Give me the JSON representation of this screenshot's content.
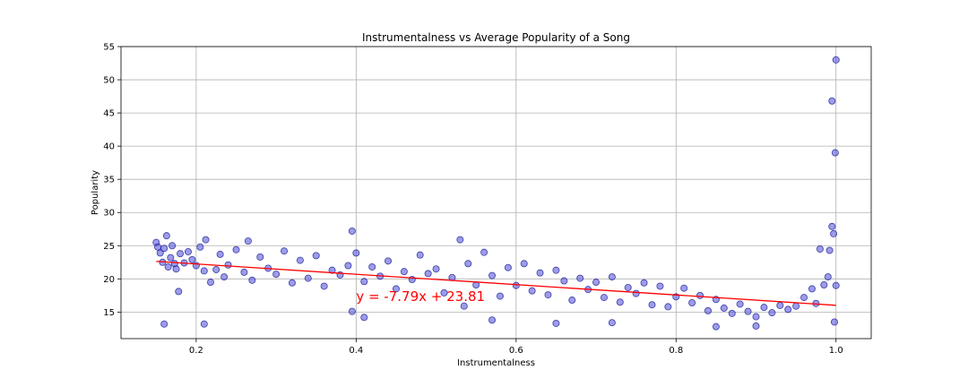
{
  "chart_data": {
    "type": "scatter",
    "title": "Instrumentalness vs Average Popularity of a Song",
    "xlabel": "Instrumentalness",
    "ylabel": "Popularity",
    "xlim": [
      0.106,
      1.044
    ],
    "ylim": [
      11,
      55
    ],
    "x_ticks": [
      0.2,
      0.4,
      0.6,
      0.8,
      1.0
    ],
    "x_tick_labels": [
      "0.2",
      "0.4",
      "0.6",
      "0.8",
      "1.0"
    ],
    "y_ticks": [
      15,
      20,
      25,
      30,
      35,
      40,
      45,
      50,
      55
    ],
    "y_tick_labels": [
      "15",
      "20",
      "25",
      "30",
      "35",
      "40",
      "45",
      "50",
      "55"
    ],
    "grid": true,
    "colors": {
      "points_face": "#4a4ad6",
      "points_edge": "#00008b",
      "trend_line": "#ff0000"
    },
    "annotation": {
      "text": "y = -7.79x + 23.81",
      "x": 0.4,
      "y": 16.7
    },
    "trend_line": {
      "slope": -7.79,
      "intercept": 23.81,
      "x_range": [
        0.15,
        1.0
      ]
    },
    "series": [
      {
        "type": "scatter",
        "x": [
          0.15,
          0.152,
          0.155,
          0.158,
          0.16,
          0.163,
          0.165,
          0.168,
          0.17,
          0.173,
          0.175,
          0.178,
          0.18,
          0.185,
          0.19,
          0.195,
          0.2,
          0.205,
          0.21,
          0.212,
          0.218,
          0.225,
          0.23,
          0.235,
          0.24,
          0.25,
          0.26,
          0.265,
          0.27,
          0.28,
          0.29,
          0.3,
          0.31,
          0.32,
          0.33,
          0.34,
          0.35,
          0.36,
          0.37,
          0.38,
          0.39,
          0.395,
          0.4,
          0.41,
          0.42,
          0.43,
          0.44,
          0.45,
          0.46,
          0.47,
          0.48,
          0.49,
          0.5,
          0.51,
          0.52,
          0.53,
          0.54,
          0.55,
          0.56,
          0.57,
          0.58,
          0.59,
          0.6,
          0.61,
          0.62,
          0.63,
          0.64,
          0.65,
          0.66,
          0.67,
          0.68,
          0.69,
          0.7,
          0.71,
          0.72,
          0.73,
          0.74,
          0.75,
          0.76,
          0.77,
          0.78,
          0.79,
          0.8,
          0.81,
          0.82,
          0.83,
          0.84,
          0.85,
          0.86,
          0.87,
          0.88,
          0.89,
          0.9,
          0.91,
          0.92,
          0.93,
          0.94,
          0.95,
          0.96,
          0.97,
          0.975,
          0.98,
          0.985,
          0.99,
          0.992,
          0.995,
          0.997,
          1.0,
          0.16,
          0.21,
          0.395,
          0.41,
          0.535,
          0.57,
          0.65,
          0.72,
          0.85,
          0.9,
          0.998,
          0.999,
          1.0
        ],
        "y": [
          25.5,
          24.8,
          23.9,
          22.5,
          24.6,
          26.5,
          21.8,
          23.2,
          25.0,
          22.3,
          21.5,
          18.1,
          23.8,
          22.4,
          24.1,
          22.9,
          22.0,
          24.8,
          21.2,
          25.9,
          19.5,
          21.4,
          23.7,
          20.3,
          22.1,
          24.4,
          21.0,
          25.7,
          19.8,
          23.3,
          21.6,
          20.7,
          24.2,
          19.4,
          22.8,
          20.1,
          23.5,
          18.9,
          21.3,
          20.6,
          22.0,
          27.2,
          23.9,
          19.6,
          21.8,
          20.4,
          22.7,
          18.5,
          21.1,
          19.9,
          23.6,
          20.8,
          21.5,
          17.9,
          20.2,
          25.9,
          22.3,
          19.1,
          24.0,
          20.5,
          17.4,
          21.7,
          19.0,
          22.3,
          18.2,
          20.9,
          17.6,
          21.3,
          19.7,
          16.8,
          20.1,
          18.4,
          19.5,
          17.2,
          20.3,
          16.5,
          18.7,
          17.8,
          19.4,
          16.1,
          18.9,
          15.8,
          17.3,
          18.6,
          16.4,
          17.5,
          15.2,
          16.9,
          15.6,
          14.8,
          16.2,
          15.1,
          14.3,
          15.7,
          14.9,
          16.0,
          15.4,
          15.9,
          17.2,
          18.5,
          16.3,
          24.5,
          19.1,
          20.3,
          24.3,
          27.9,
          26.8,
          19.0,
          13.2,
          13.2,
          15.1,
          14.2,
          15.9,
          13.8,
          13.3,
          13.4,
          12.8,
          12.9,
          13.5,
          39.0,
          53.0
        ]
      },
      {
        "type": "scatter",
        "x": [
          0.995
        ],
        "y": [
          46.8
        ]
      }
    ]
  }
}
